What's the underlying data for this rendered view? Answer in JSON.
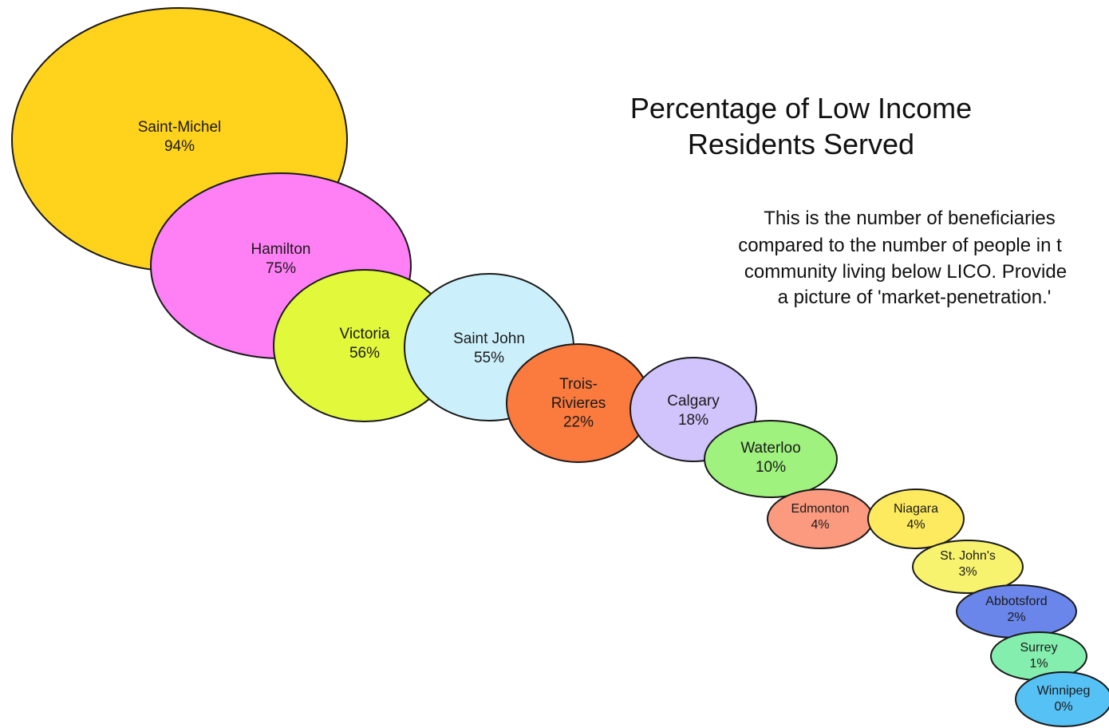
{
  "chart_data": {
    "type": "bubble",
    "title": "Percentage of Low Income Residents Served",
    "title_lines": [
      "Percentage of Low Income",
      "Residents Served"
    ],
    "subtitle_lines": [
      "This is the number of beneficiaries",
      "compared to the number of people in t",
      "community living below LICO. Provide",
      "a picture of 'market-penetration.'"
    ],
    "series": [
      {
        "name": "Saint-Michel",
        "label_lines": [
          "Saint-Michel"
        ],
        "value": 94,
        "value_label": "94%",
        "color": "#ffd21c"
      },
      {
        "name": "Hamilton",
        "label_lines": [
          "Hamilton"
        ],
        "value": 75,
        "value_label": "75%",
        "color": "#ff7ff5"
      },
      {
        "name": "Victoria",
        "label_lines": [
          "Victoria"
        ],
        "value": 56,
        "value_label": "56%",
        "color": "#e2f83a"
      },
      {
        "name": "Saint John",
        "label_lines": [
          "Saint John"
        ],
        "value": 55,
        "value_label": "55%",
        "color": "#ccf0fb"
      },
      {
        "name": "Trois-Rivieres",
        "label_lines": [
          "Trois-",
          "Rivieres"
        ],
        "value": 22,
        "value_label": "22%",
        "color": "#fb7a3e"
      },
      {
        "name": "Calgary",
        "label_lines": [
          "Calgary"
        ],
        "value": 18,
        "value_label": "18%",
        "color": "#d1c3fb"
      },
      {
        "name": "Waterloo",
        "label_lines": [
          "Waterloo"
        ],
        "value": 10,
        "value_label": "10%",
        "color": "#9ff27e"
      },
      {
        "name": "Edmonton",
        "label_lines": [
          "Edmonton"
        ],
        "value": 4,
        "value_label": "4%",
        "color": "#fb9a7f"
      },
      {
        "name": "Niagara",
        "label_lines": [
          "Niagara"
        ],
        "value": 4,
        "value_label": "4%",
        "color": "#fdea5e"
      },
      {
        "name": "St. John's",
        "label_lines": [
          "St. John's"
        ],
        "value": 3,
        "value_label": "3%",
        "color": "#f7f36f"
      },
      {
        "name": "Abbotsford",
        "label_lines": [
          "Abbotsford"
        ],
        "value": 2,
        "value_label": "2%",
        "color": "#6a86ea"
      },
      {
        "name": "Surrey",
        "label_lines": [
          "Surrey"
        ],
        "value": 1,
        "value_label": "1%",
        "color": "#84eeae"
      },
      {
        "name": "Winnipeg",
        "label_lines": [
          "Winnipeg"
        ],
        "value": 0,
        "value_label": "0%",
        "color": "#56c1f5"
      }
    ],
    "legend": "none",
    "grid": false
  }
}
